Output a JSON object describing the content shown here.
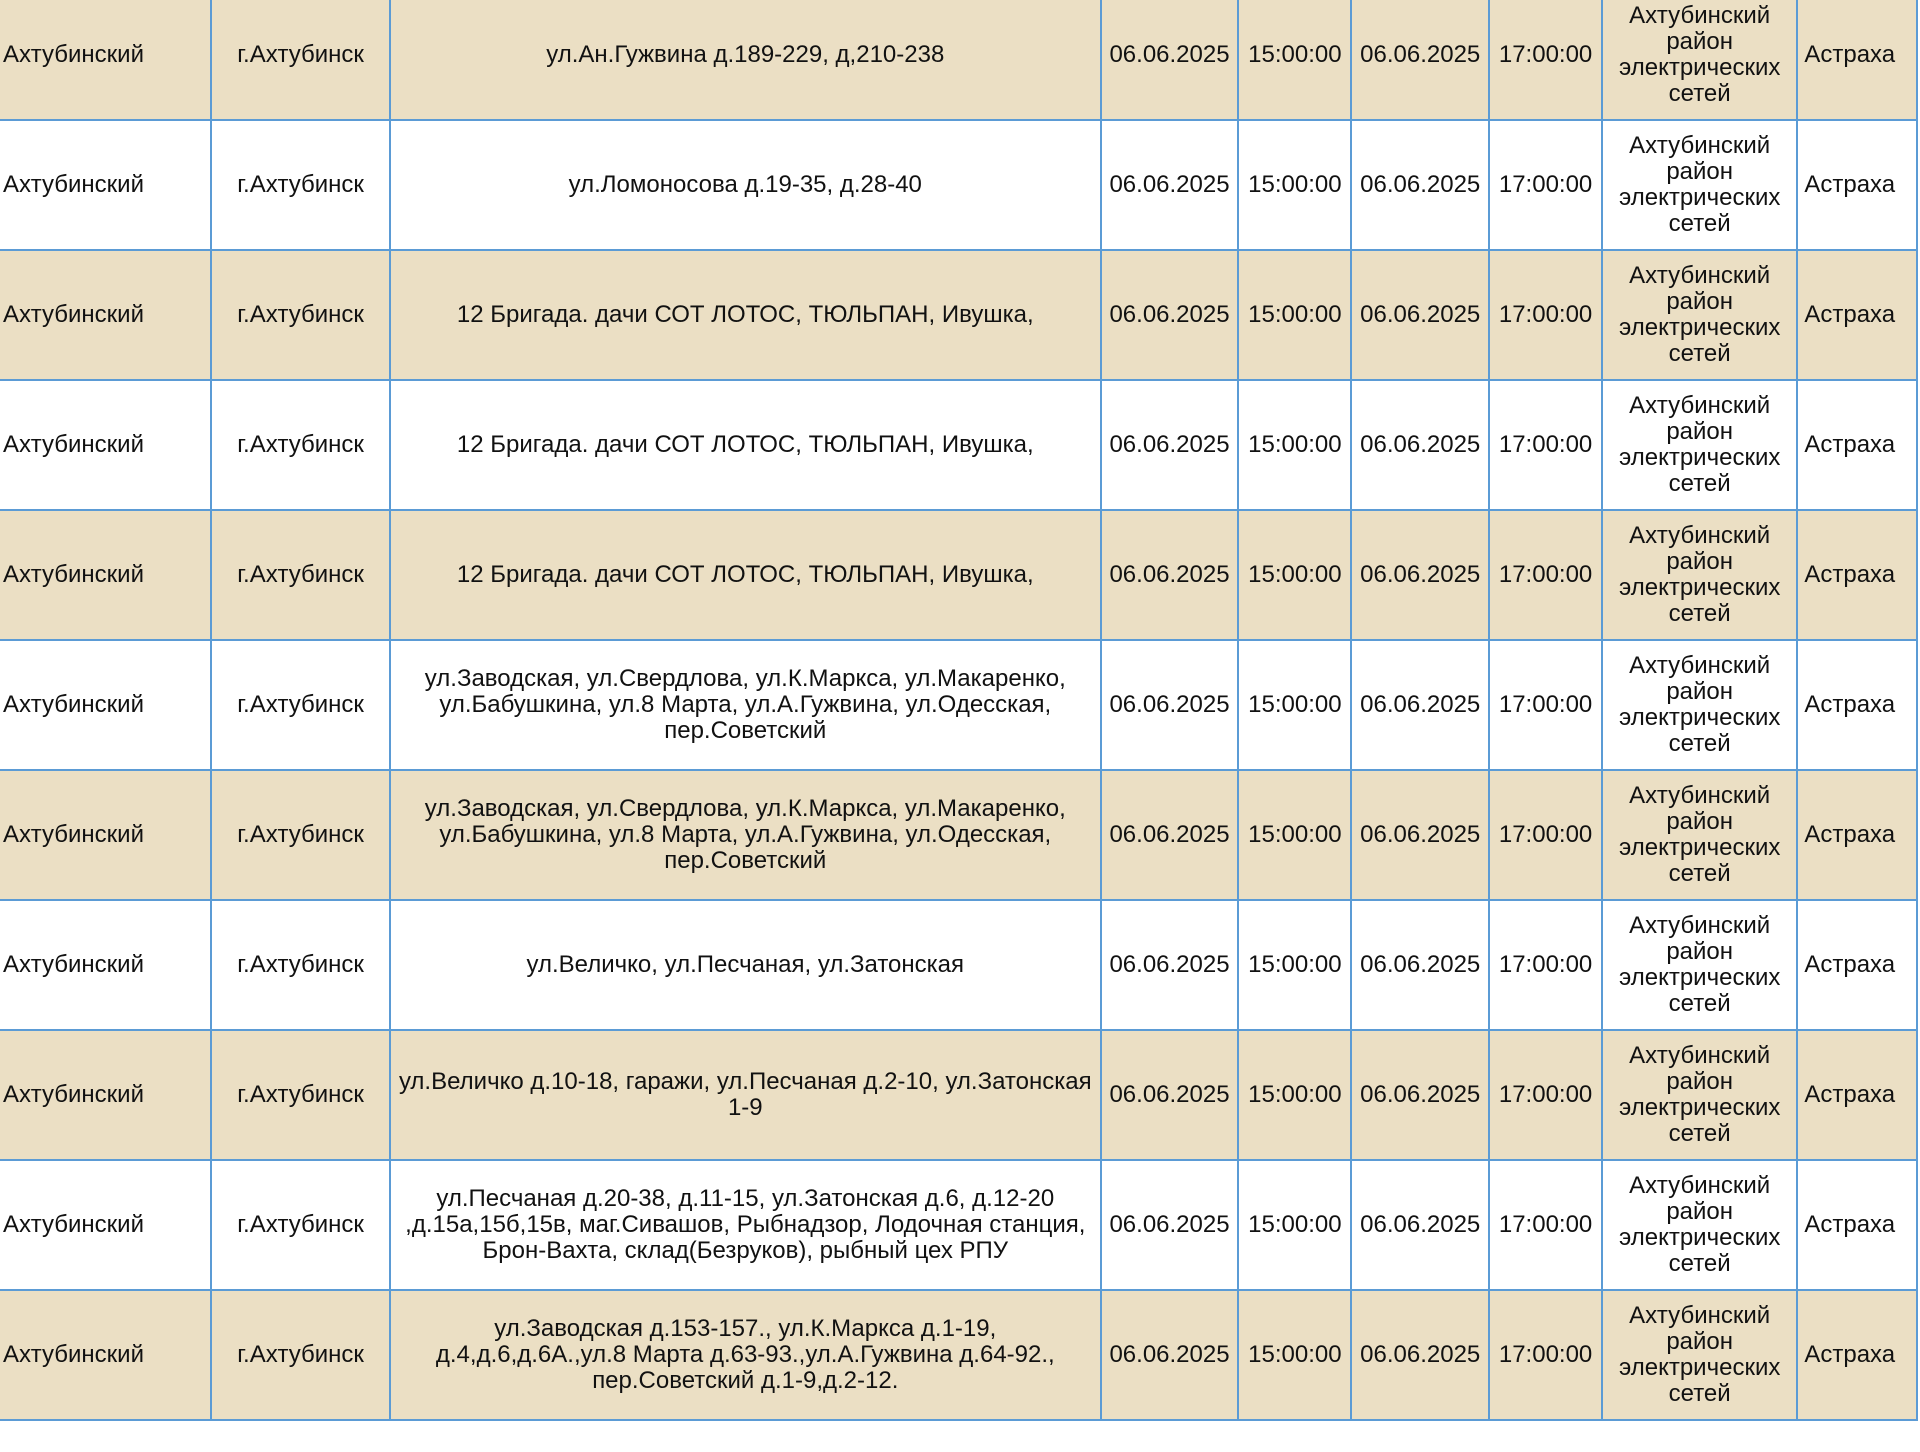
{
  "table": {
    "rows": [
      [
        "Ахтубинский",
        "г.Ахтубинск",
        "ул.Ан.Гужвина д.189-229, д,210-238",
        "06.06.2025",
        "15:00:00",
        "06.06.2025",
        "17:00:00",
        "Ахтубинский район электрических сетей",
        "Астраха"
      ],
      [
        "Ахтубинский",
        "г.Ахтубинск",
        "ул.Ломоносова д.19-35, д.28-40",
        "06.06.2025",
        "15:00:00",
        "06.06.2025",
        "17:00:00",
        "Ахтубинский район электрических сетей",
        "Астраха"
      ],
      [
        "Ахтубинский",
        "г.Ахтубинск",
        "12 Бригада. дачи СОТ ЛОТОС, ТЮЛЬПАН, Ивушка,",
        "06.06.2025",
        "15:00:00",
        "06.06.2025",
        "17:00:00",
        "Ахтубинский район электрических сетей",
        "Астраха"
      ],
      [
        "Ахтубинский",
        "г.Ахтубинск",
        "12 Бригада. дачи СОТ ЛОТОС, ТЮЛЬПАН, Ивушка,",
        "06.06.2025",
        "15:00:00",
        "06.06.2025",
        "17:00:00",
        "Ахтубинский район электрических сетей",
        "Астраха"
      ],
      [
        "Ахтубинский",
        "г.Ахтубинск",
        "12 Бригада. дачи СОТ ЛОТОС, ТЮЛЬПАН, Ивушка,",
        "06.06.2025",
        "15:00:00",
        "06.06.2025",
        "17:00:00",
        "Ахтубинский район электрических сетей",
        "Астраха"
      ],
      [
        "Ахтубинский",
        "г.Ахтубинск",
        "ул.Заводская, ул.Свердлова, ул.К.Маркса, ул.Макаренко, ул.Бабушкина, ул.8 Марта, ул.А.Гужвина, ул.Одесская, пер.Советский",
        "06.06.2025",
        "15:00:00",
        "06.06.2025",
        "17:00:00",
        "Ахтубинский район электрических сетей",
        "Астраха"
      ],
      [
        "Ахтубинский",
        "г.Ахтубинск",
        "ул.Заводская, ул.Свердлова, ул.К.Маркса, ул.Макаренко, ул.Бабушкина, ул.8 Марта, ул.А.Гужвина, ул.Одесская, пер.Советский",
        "06.06.2025",
        "15:00:00",
        "06.06.2025",
        "17:00:00",
        "Ахтубинский район электрических сетей",
        "Астраха"
      ],
      [
        "Ахтубинский",
        "г.Ахтубинск",
        "ул.Величко, ул.Песчаная, ул.Затонская",
        "06.06.2025",
        "15:00:00",
        "06.06.2025",
        "17:00:00",
        "Ахтубинский район электрических сетей",
        "Астраха"
      ],
      [
        "Ахтубинский",
        "г.Ахтубинск",
        "ул.Величко д.10-18, гаражи, ул.Песчаная д.2-10, ул.Затонская 1-9",
        "06.06.2025",
        "15:00:00",
        "06.06.2025",
        "17:00:00",
        "Ахтубинский район электрических сетей",
        "Астраха"
      ],
      [
        "Ахтубинский",
        "г.Ахтубинск",
        "ул.Песчаная д.20-38, д.11-15, ул.Затонская д.6, д.12-20 ,д.15а,15б,15в, маг.Сивашов, Рыбнадзор, Лодочная станция, Брон-Вахта, склад(Безруков), рыбный цех РПУ",
        "06.06.2025",
        "15:00:00",
        "06.06.2025",
        "17:00:00",
        "Ахтубинский район электрических сетей",
        "Астраха"
      ],
      [
        "Ахтубинский",
        "г.Ахтубинск",
        "ул.Заводская д.153-157., ул.К.Маркса д.1-19, д.4,д.6,д.6А.,ул.8 Марта д.63-93.,ул.А.Гужвина д.64-92., пер.Советский д.1-9,д.2-12.",
        "06.06.2025",
        "15:00:00",
        "06.06.2025",
        "17:00:00",
        "Ахтубинский район электрических сетей",
        "Астраха"
      ]
    ]
  }
}
